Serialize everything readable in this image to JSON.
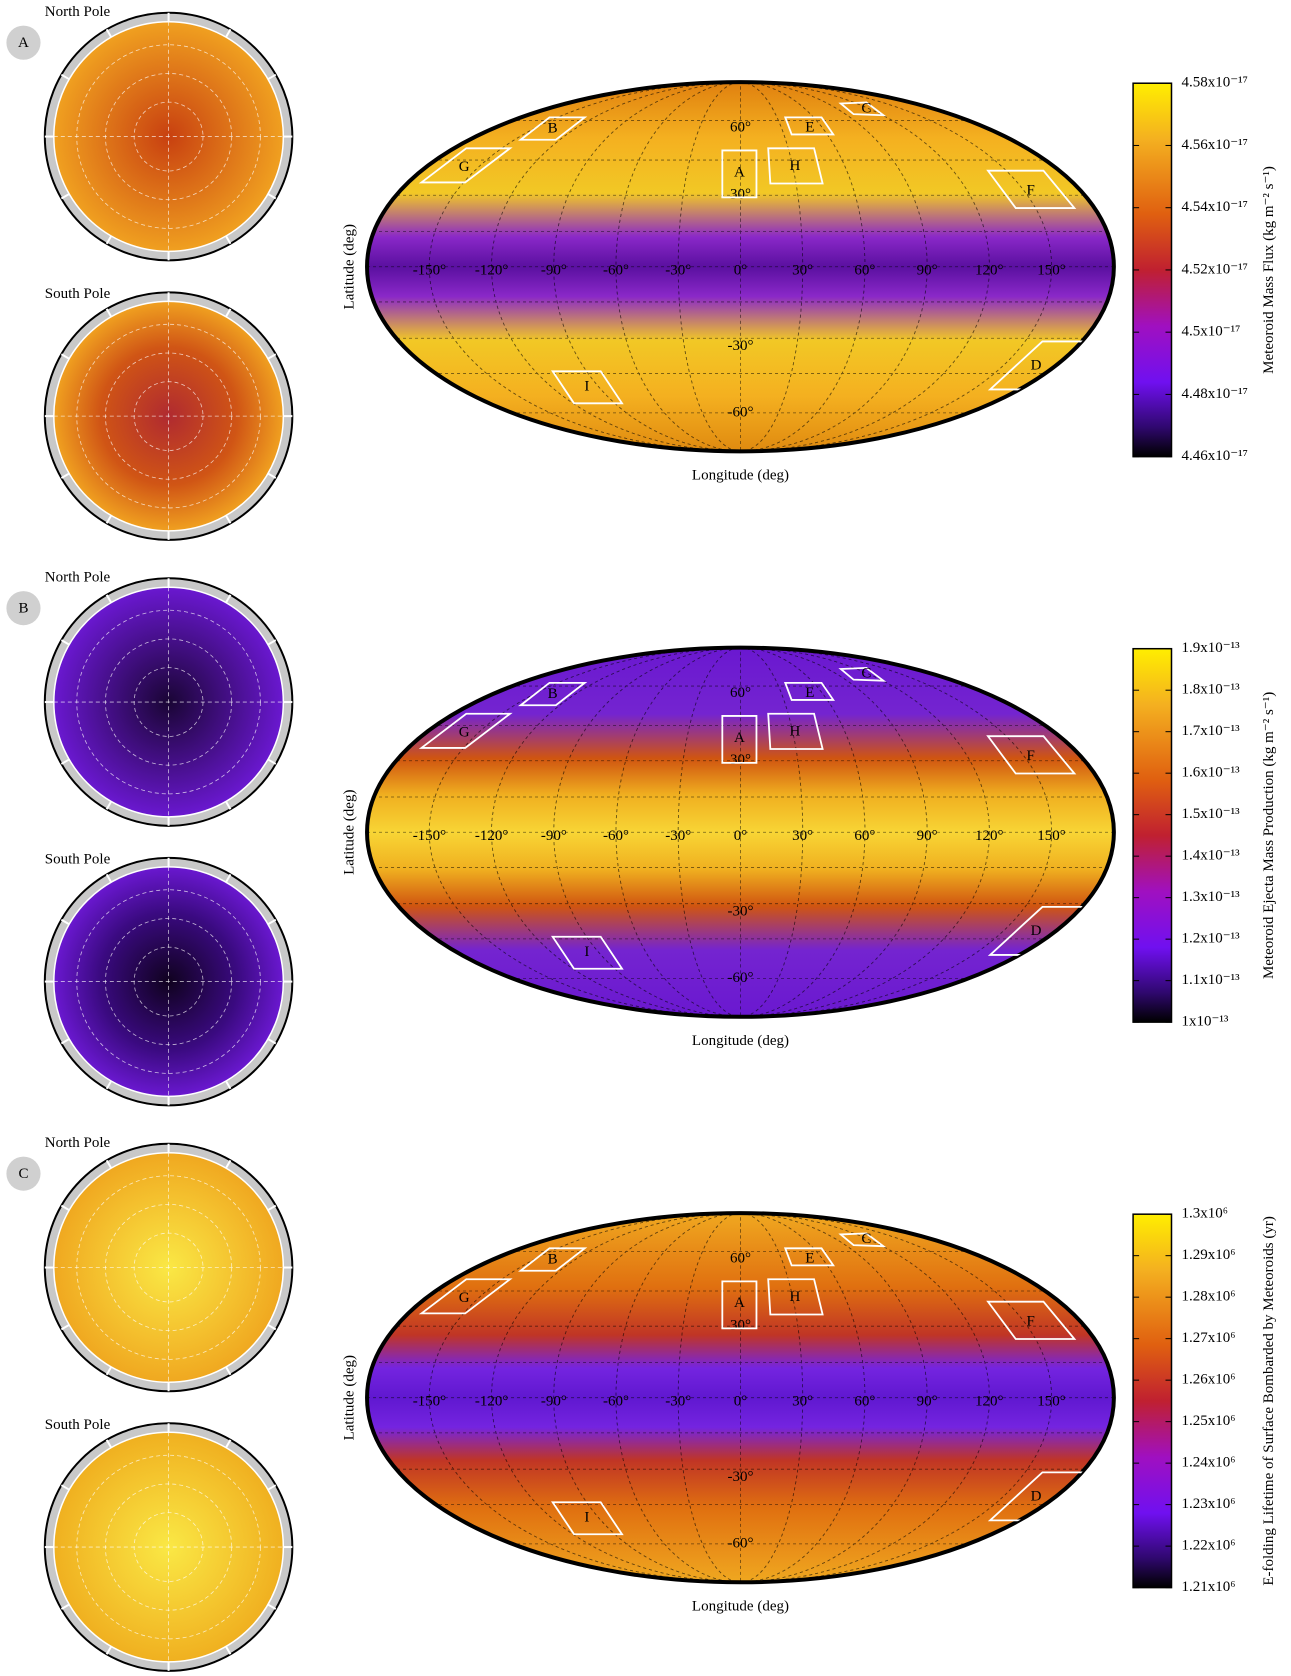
{
  "panels": [
    {
      "label": "A",
      "north_pole": "North Pole",
      "south_pole": "South Pole",
      "map": {
        "longitude_labels": [
          "-150°",
          "-120°",
          "-90°",
          "-60°",
          "-30°",
          "0°",
          "30°",
          "60°",
          "90°",
          "120°",
          "150°"
        ],
        "latitude_labels": [
          "60°",
          "30°",
          "-30°",
          "-60°"
        ],
        "region_labels": [
          "G",
          "B",
          "A",
          "E",
          "H",
          "C",
          "F",
          "D",
          "I"
        ],
        "xlabel": "Longitude (deg)",
        "ylabel": "Latitude (deg)"
      },
      "colorbar": {
        "title": "Meteoroid Mass Flux (kg m⁻² s⁻¹)",
        "lim": [
          4.46e-17,
          4.58e-17
        ],
        "ticks": [
          {
            "value": 4.58e-17,
            "label": "4.58x10⁻¹⁷"
          },
          {
            "value": 4.56e-17,
            "label": "4.56x10⁻¹⁷"
          },
          {
            "value": 4.54e-17,
            "label": "4.54x10⁻¹⁷"
          },
          {
            "value": 4.52e-17,
            "label": "4.52x10⁻¹⁷"
          },
          {
            "value": 4.5e-17,
            "label": "4.5x10⁻¹⁷"
          },
          {
            "value": 4.48e-17,
            "label": "4.48x10⁻¹⁷"
          },
          {
            "value": 4.46e-17,
            "label": "4.46x10⁻¹⁷"
          }
        ]
      }
    },
    {
      "label": "B",
      "north_pole": "North Pole",
      "south_pole": "South Pole",
      "map": {
        "longitude_labels": [
          "-150°",
          "-120°",
          "-90°",
          "-60°",
          "-30°",
          "0°",
          "30°",
          "60°",
          "90°",
          "120°",
          "150°"
        ],
        "latitude_labels": [
          "60°",
          "30°",
          "-30°",
          "-60°"
        ],
        "region_labels": [
          "G",
          "B",
          "A",
          "E",
          "H",
          "C",
          "F",
          "D",
          "I"
        ],
        "xlabel": "Longitude (deg)",
        "ylabel": "Latitude (deg)"
      },
      "colorbar": {
        "title": "Meteoroid Ejecta Mass Production (kg m⁻² s⁻¹)",
        "lim": [
          1e-13,
          1.9e-13
        ],
        "ticks": [
          {
            "value": 1.9e-13,
            "label": "1.9x10⁻¹³"
          },
          {
            "value": 1.8e-13,
            "label": "1.8x10⁻¹³"
          },
          {
            "value": 1.7e-13,
            "label": "1.7x10⁻¹³"
          },
          {
            "value": 1.6e-13,
            "label": "1.6x10⁻¹³"
          },
          {
            "value": 1.5e-13,
            "label": "1.5x10⁻¹³"
          },
          {
            "value": 1.4e-13,
            "label": "1.4x10⁻¹³"
          },
          {
            "value": 1.3e-13,
            "label": "1.3x10⁻¹³"
          },
          {
            "value": 1.2e-13,
            "label": "1.2x10⁻¹³"
          },
          {
            "value": 1.1e-13,
            "label": "1.1x10⁻¹³"
          },
          {
            "value": 1e-13,
            "label": "1x10⁻¹³"
          }
        ]
      }
    },
    {
      "label": "C",
      "north_pole": "North Pole",
      "south_pole": "South Pole",
      "map": {
        "longitude_labels": [
          "-150°",
          "-120°",
          "-90°",
          "-60°",
          "-30°",
          "0°",
          "30°",
          "60°",
          "90°",
          "120°",
          "150°"
        ],
        "latitude_labels": [
          "60°",
          "30°",
          "-30°",
          "-60°"
        ],
        "region_labels": [
          "G",
          "B",
          "A",
          "E",
          "H",
          "C",
          "F",
          "D",
          "I"
        ],
        "xlabel": "Longitude (deg)",
        "ylabel": "Latitude (deg)"
      },
      "colorbar": {
        "title": "E-folding Lifetime of Surface Bombarded by Meteoroids (yr)",
        "lim": [
          1210000,
          1300000
        ],
        "ticks": [
          {
            "value": 1300000,
            "label": "1.3x10⁶"
          },
          {
            "value": 1290000,
            "label": "1.29x10⁶"
          },
          {
            "value": 1280000,
            "label": "1.28x10⁶"
          },
          {
            "value": 1270000,
            "label": "1.27x10⁶"
          },
          {
            "value": 1260000,
            "label": "1.26x10⁶"
          },
          {
            "value": 1250000,
            "label": "1.25x10⁶"
          },
          {
            "value": 1240000,
            "label": "1.24x10⁶"
          },
          {
            "value": 1230000,
            "label": "1.23x10⁶"
          },
          {
            "value": 1220000,
            "label": "1.22x10⁶"
          },
          {
            "value": 1210000,
            "label": "1.21x10⁶"
          }
        ]
      }
    }
  ]
}
